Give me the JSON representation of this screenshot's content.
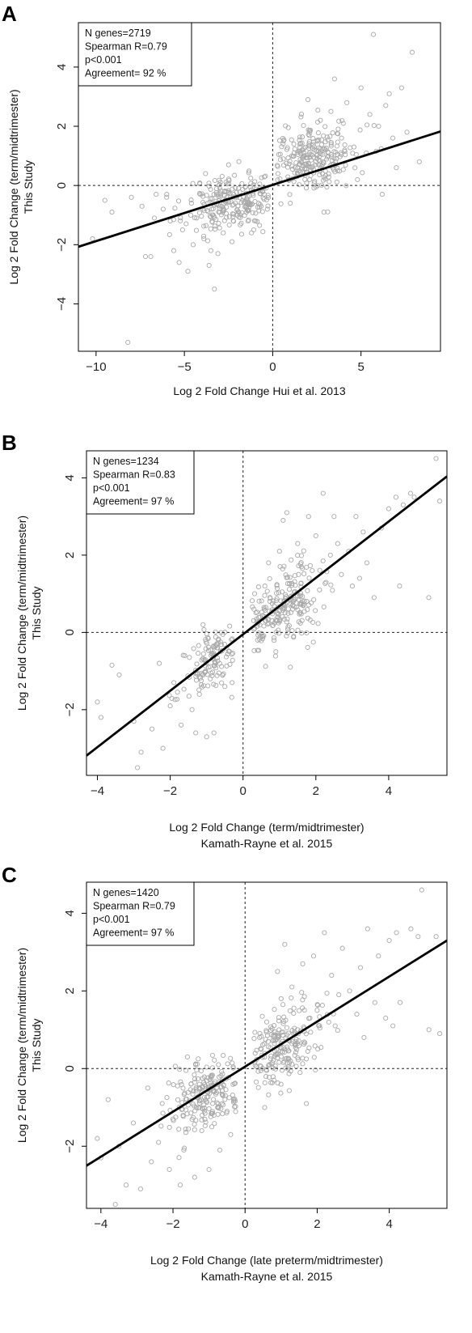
{
  "chart_data": [
    {
      "panel": "A",
      "type": "scatter",
      "xlabel": [
        "Log 2 Fold Change Hui et al. 2013"
      ],
      "ylabel": [
        "Log 2 Fold Change (term/midtrimester)",
        "This Study"
      ],
      "xlim": [
        -11.0,
        9.5
      ],
      "ylim": [
        -5.6,
        5.5
      ],
      "xticks": [
        -10,
        -5,
        0,
        5
      ],
      "yticks": [
        -4,
        -2,
        0,
        2,
        4
      ],
      "stats": [
        "N genes=2719",
        "Spearman R=0.79",
        "p<0.001",
        "Agreement= 92 %"
      ],
      "fit_line": {
        "slope": 0.19,
        "intercept": 0.02
      },
      "reference_lines": {
        "x": 0,
        "y": 0
      },
      "point_color": "#a8a8a8",
      "points": [
        [
          -10.2,
          -1.8
        ],
        [
          -9.5,
          -0.5
        ],
        [
          -9.1,
          -0.9
        ],
        [
          -8.2,
          -5.3
        ],
        [
          -8.0,
          -0.4
        ],
        [
          -7.4,
          -0.7
        ],
        [
          -7.2,
          -2.4
        ],
        [
          -6.9,
          -2.4
        ],
        [
          -6.7,
          -1.1
        ],
        [
          -6.2,
          -0.8
        ],
        [
          -6.0,
          -0.3
        ],
        [
          -5.6,
          -2.2
        ],
        [
          -5.3,
          -2.6
        ],
        [
          -5.1,
          -1.5
        ],
        [
          -4.8,
          -2.9
        ],
        [
          -4.5,
          -2.0
        ],
        [
          -4.3,
          -1.1
        ],
        [
          -4.1,
          -0.3
        ],
        [
          -3.9,
          -1.8
        ],
        [
          -3.6,
          -2.7
        ],
        [
          -3.5,
          -2.2
        ],
        [
          -3.3,
          -3.5
        ],
        [
          -3.1,
          -2.3
        ],
        [
          -2.8,
          -1.6
        ],
        [
          -2.6,
          -0.4
        ],
        [
          -2.3,
          -1.9
        ],
        [
          -2.0,
          -1.0
        ],
        [
          -1.7,
          -0.5
        ],
        [
          -1.4,
          -1.2
        ],
        [
          -1.1,
          -0.2
        ],
        [
          -0.8,
          -0.6
        ],
        [
          -0.5,
          -0.1
        ],
        [
          -0.3,
          -0.8
        ],
        [
          0.3,
          0.4
        ],
        [
          0.6,
          0.9
        ],
        [
          0.9,
          0.2
        ],
        [
          1.2,
          1.4
        ],
        [
          1.5,
          0.5
        ],
        [
          1.8,
          1.0
        ],
        [
          2.1,
          1.8
        ],
        [
          2.4,
          0.7
        ],
        [
          2.7,
          2.2
        ],
        [
          3.0,
          1.2
        ],
        [
          3.3,
          2.5
        ],
        [
          3.6,
          0.9
        ],
        [
          3.9,
          1.6
        ],
        [
          4.2,
          2.8
        ],
        [
          4.6,
          1.3
        ],
        [
          5.0,
          3.3
        ],
        [
          5.3,
          1.1
        ],
        [
          5.7,
          5.1
        ],
        [
          6.0,
          2.0
        ],
        [
          6.4,
          2.7
        ],
        [
          6.8,
          1.6
        ],
        [
          7.3,
          3.3
        ],
        [
          7.6,
          1.8
        ],
        [
          7.9,
          4.5
        ],
        [
          8.3,
          0.8
        ],
        [
          -6.6,
          -0.3
        ],
        [
          -5.8,
          -1.2
        ],
        [
          -4.6,
          -0.6
        ],
        [
          -3.0,
          -0.9
        ],
        [
          -2.2,
          -0.3
        ],
        [
          -1.2,
          -1.6
        ],
        [
          1.0,
          -0.6
        ],
        [
          2.9,
          -0.9
        ],
        [
          4.8,
          0.2
        ],
        [
          6.2,
          -0.3
        ],
        [
          -3.8,
          0.4
        ],
        [
          -2.5,
          0.7
        ],
        [
          2.0,
          2.9
        ],
        [
          3.5,
          3.6
        ],
        [
          4.0,
          2.1
        ],
        [
          5.5,
          2.4
        ],
        [
          6.6,
          3.1
        ],
        [
          7.0,
          0.6
        ]
      ],
      "clusters": [
        {
          "cx": -2.2,
          "cy": -0.55,
          "sx": 1.35,
          "sy": 0.5,
          "n": 230,
          "rho": 0.2,
          "side": "neg",
          "seed": 11
        },
        {
          "cx": 2.3,
          "cy": 0.9,
          "sx": 1.25,
          "sy": 0.62,
          "n": 240,
          "rho": 0.2,
          "side": "pos",
          "seed": 12
        }
      ]
    },
    {
      "panel": "B",
      "type": "scatter",
      "xlabel": [
        "Log 2 Fold Change  (term/midtrimester)",
        "Kamath-Rayne et al. 2015"
      ],
      "ylabel": [
        "Log 2 Fold Change (term/midtrimester)",
        "This Study"
      ],
      "xlim": [
        -4.3,
        5.6
      ],
      "ylim": [
        -3.7,
        4.7
      ],
      "xticks": [
        -4,
        -2,
        0,
        2,
        4
      ],
      "yticks": [
        -2,
        0,
        2,
        4
      ],
      "stats": [
        "N genes=1234",
        "Spearman R=0.83",
        "p<0.001",
        "Agreement= 97 %"
      ],
      "fit_line": {
        "slope": 0.73,
        "intercept": -0.05
      },
      "reference_lines": {
        "x": 0,
        "y": 0
      },
      "point_color": "#a8a8a8",
      "points": [
        [
          -4.0,
          -1.8
        ],
        [
          -3.9,
          -2.2
        ],
        [
          -3.6,
          -0.85
        ],
        [
          -3.4,
          -1.1
        ],
        [
          -3.0,
          -2.3
        ],
        [
          -2.9,
          -3.5
        ],
        [
          -2.8,
          -3.1
        ],
        [
          -2.5,
          -2.5
        ],
        [
          -2.3,
          -0.8
        ],
        [
          -2.2,
          -3.0
        ],
        [
          -2.0,
          -1.9
        ],
        [
          -1.9,
          -1.3
        ],
        [
          -1.7,
          -2.4
        ],
        [
          -1.6,
          -0.6
        ],
        [
          -1.4,
          -2.0
        ],
        [
          -1.3,
          -2.6
        ],
        [
          -1.2,
          -1.6
        ],
        [
          -1.0,
          -2.7
        ],
        [
          -0.9,
          -1.2
        ],
        [
          -0.8,
          -2.6
        ],
        [
          -0.7,
          -0.4
        ],
        [
          -0.5,
          -1.4
        ],
        [
          0.3,
          0.6
        ],
        [
          0.4,
          -0.2
        ],
        [
          0.6,
          1.2
        ],
        [
          0.7,
          1.8
        ],
        [
          0.9,
          -0.5
        ],
        [
          1.0,
          2.1
        ],
        [
          1.1,
          2.9
        ],
        [
          1.2,
          3.1
        ],
        [
          1.3,
          -0.9
        ],
        [
          1.5,
          2.3
        ],
        [
          1.6,
          1.7
        ],
        [
          1.8,
          3.0
        ],
        [
          2.0,
          2.5
        ],
        [
          2.1,
          1.1
        ],
        [
          2.2,
          3.6
        ],
        [
          2.4,
          2.0
        ],
        [
          2.5,
          3.0
        ],
        [
          2.7,
          1.5
        ],
        [
          2.9,
          2.1
        ],
        [
          3.0,
          1.2
        ],
        [
          3.1,
          3.0
        ],
        [
          3.3,
          2.6
        ],
        [
          3.4,
          1.8
        ],
        [
          3.6,
          0.9
        ],
        [
          3.8,
          2.7
        ],
        [
          4.0,
          3.2
        ],
        [
          4.2,
          3.5
        ],
        [
          4.3,
          1.2
        ],
        [
          4.4,
          3.3
        ],
        [
          4.6,
          3.6
        ],
        [
          4.7,
          3.5
        ],
        [
          5.1,
          0.9
        ],
        [
          5.3,
          4.5
        ],
        [
          5.4,
          3.4
        ],
        [
          -1.1,
          0.2
        ],
        [
          -0.3,
          -1.3
        ],
        [
          0.8,
          0.3
        ],
        [
          1.9,
          1.6
        ],
        [
          2.6,
          2.3
        ],
        [
          3.2,
          1.4
        ]
      ],
      "clusters": [
        {
          "cx": -0.85,
          "cy": -0.8,
          "sx": 0.38,
          "sy": 0.45,
          "n": 120,
          "rho": 0.5,
          "side": "neg",
          "seed": 21
        },
        {
          "cx": 1.05,
          "cy": 0.6,
          "sx": 0.55,
          "sy": 0.55,
          "n": 220,
          "rho": 0.5,
          "side": "pos",
          "seed": 22
        }
      ]
    },
    {
      "panel": "C",
      "type": "scatter",
      "xlabel": [
        "Log 2 Fold Change  (late preterm/midtrimester)",
        "Kamath-Rayne et al. 2015"
      ],
      "ylabel": [
        "Log 2 Fold Change (term/midtrimester)",
        "This Study"
      ],
      "xlim": [
        -4.4,
        5.6
      ],
      "ylim": [
        -3.6,
        4.8
      ],
      "xticks": [
        -4,
        -2,
        0,
        2,
        4
      ],
      "yticks": [
        -2,
        0,
        2,
        4
      ],
      "stats": [
        "N genes=1420",
        "Spearman R=0.79",
        "p<0.001",
        "Agreement= 97 %"
      ],
      "fit_line": {
        "slope": 0.58,
        "intercept": 0.05
      },
      "reference_lines": {
        "x": 0,
        "y": 0
      },
      "point_color": "#a8a8a8",
      "points": [
        [
          -4.1,
          -1.8
        ],
        [
          -4.0,
          -2.3
        ],
        [
          -3.8,
          -0.8
        ],
        [
          -3.6,
          -3.5
        ],
        [
          -3.5,
          -2.0
        ],
        [
          -3.3,
          -3.0
        ],
        [
          -3.1,
          -1.4
        ],
        [
          -2.9,
          -3.1
        ],
        [
          -2.7,
          -0.5
        ],
        [
          -2.6,
          -2.4
        ],
        [
          -2.4,
          -1.9
        ],
        [
          -2.3,
          -0.9
        ],
        [
          -2.1,
          -2.6
        ],
        [
          -2.0,
          -1.3
        ],
        [
          -1.8,
          -3.0
        ],
        [
          -1.7,
          -2.1
        ],
        [
          -1.5,
          -0.4
        ],
        [
          -1.4,
          -2.8
        ],
        [
          -1.2,
          -1.6
        ],
        [
          -1.0,
          -2.6
        ],
        [
          -0.9,
          -0.9
        ],
        [
          -0.7,
          -2.1
        ],
        [
          -0.5,
          -1.1
        ],
        [
          0.4,
          0.8
        ],
        [
          0.6,
          1.2
        ],
        [
          0.8,
          -0.3
        ],
        [
          0.9,
          2.5
        ],
        [
          1.0,
          1.8
        ],
        [
          1.1,
          3.2
        ],
        [
          1.3,
          2.1
        ],
        [
          1.4,
          0.6
        ],
        [
          1.6,
          2.7
        ],
        [
          1.7,
          -0.9
        ],
        [
          1.9,
          2.9
        ],
        [
          2.0,
          1.5
        ],
        [
          2.2,
          3.5
        ],
        [
          2.4,
          2.4
        ],
        [
          2.5,
          1.1
        ],
        [
          2.7,
          3.1
        ],
        [
          2.9,
          2.0
        ],
        [
          3.1,
          1.4
        ],
        [
          3.2,
          2.6
        ],
        [
          3.4,
          3.6
        ],
        [
          3.6,
          1.7
        ],
        [
          3.7,
          2.9
        ],
        [
          3.9,
          1.3
        ],
        [
          4.0,
          3.3
        ],
        [
          4.1,
          1.1
        ],
        [
          4.2,
          3.5
        ],
        [
          4.3,
          1.7
        ],
        [
          4.6,
          3.6
        ],
        [
          4.8,
          3.4
        ],
        [
          4.9,
          4.6
        ],
        [
          5.1,
          1.0
        ],
        [
          5.3,
          3.4
        ],
        [
          5.4,
          0.9
        ],
        [
          -1.6,
          0.3
        ],
        [
          -0.4,
          -1.7
        ],
        [
          0.9,
          0.4
        ],
        [
          1.8,
          1.3
        ],
        [
          2.6,
          1.9
        ],
        [
          3.3,
          0.8
        ]
      ],
      "clusters": [
        {
          "cx": -1.1,
          "cy": -0.7,
          "sx": 0.55,
          "sy": 0.5,
          "n": 200,
          "rho": 0.35,
          "side": "neg",
          "seed": 31
        },
        {
          "cx": 0.95,
          "cy": 0.55,
          "sx": 0.6,
          "sy": 0.55,
          "n": 200,
          "rho": 0.4,
          "side": "pos",
          "seed": 32
        }
      ]
    }
  ]
}
